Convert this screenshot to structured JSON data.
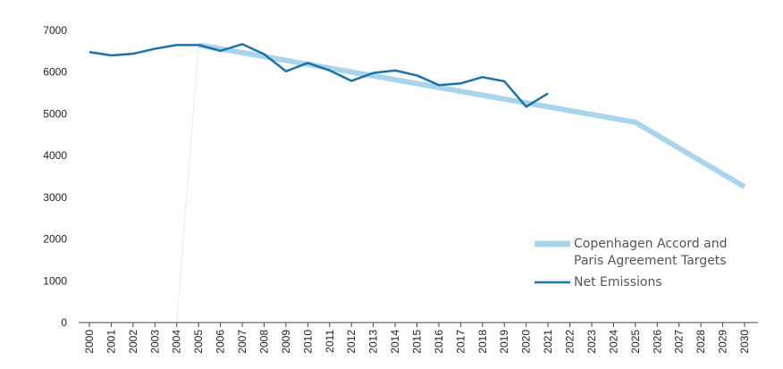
{
  "chart_data": {
    "type": "line",
    "title": "",
    "xlabel": "",
    "ylabel": "",
    "ylim": [
      0,
      7000
    ],
    "yticks": [
      0,
      1000,
      2000,
      3000,
      4000,
      5000,
      6000,
      7000
    ],
    "x": [
      2000,
      2001,
      2002,
      2003,
      2004,
      2005,
      2006,
      2007,
      2008,
      2009,
      2010,
      2011,
      2012,
      2013,
      2014,
      2015,
      2016,
      2017,
      2018,
      2019,
      2020,
      2021,
      2022,
      2023,
      2024,
      2025,
      2026,
      2027,
      2028,
      2029,
      2030
    ],
    "grid": false,
    "legend_position": "bottom-right",
    "series": [
      {
        "name": "Copenhagen Accord and Paris Agreement Targets",
        "legend_lines": [
          "Copenhagen Accord and",
          "Paris Agreement Targets"
        ],
        "color": "#a9d5ec",
        "points": [
          [
            2005,
            6650
          ],
          [
            2025,
            4800
          ],
          [
            2030,
            3250
          ]
        ]
      },
      {
        "name": "Net Emissions",
        "legend_lines": [
          "Net Emissions"
        ],
        "color": "#1a73a8",
        "points": [
          [
            2000,
            6480
          ],
          [
            2001,
            6400
          ],
          [
            2002,
            6440
          ],
          [
            2003,
            6560
          ],
          [
            2004,
            6650
          ],
          [
            2005,
            6650
          ],
          [
            2006,
            6510
          ],
          [
            2007,
            6670
          ],
          [
            2008,
            6430
          ],
          [
            2009,
            6020
          ],
          [
            2010,
            6220
          ],
          [
            2011,
            6040
          ],
          [
            2012,
            5790
          ],
          [
            2013,
            5980
          ],
          [
            2014,
            6040
          ],
          [
            2015,
            5920
          ],
          [
            2016,
            5690
          ],
          [
            2017,
            5730
          ],
          [
            2018,
            5880
          ],
          [
            2019,
            5780
          ],
          [
            2020,
            5170
          ],
          [
            2021,
            5490
          ]
        ]
      }
    ]
  }
}
